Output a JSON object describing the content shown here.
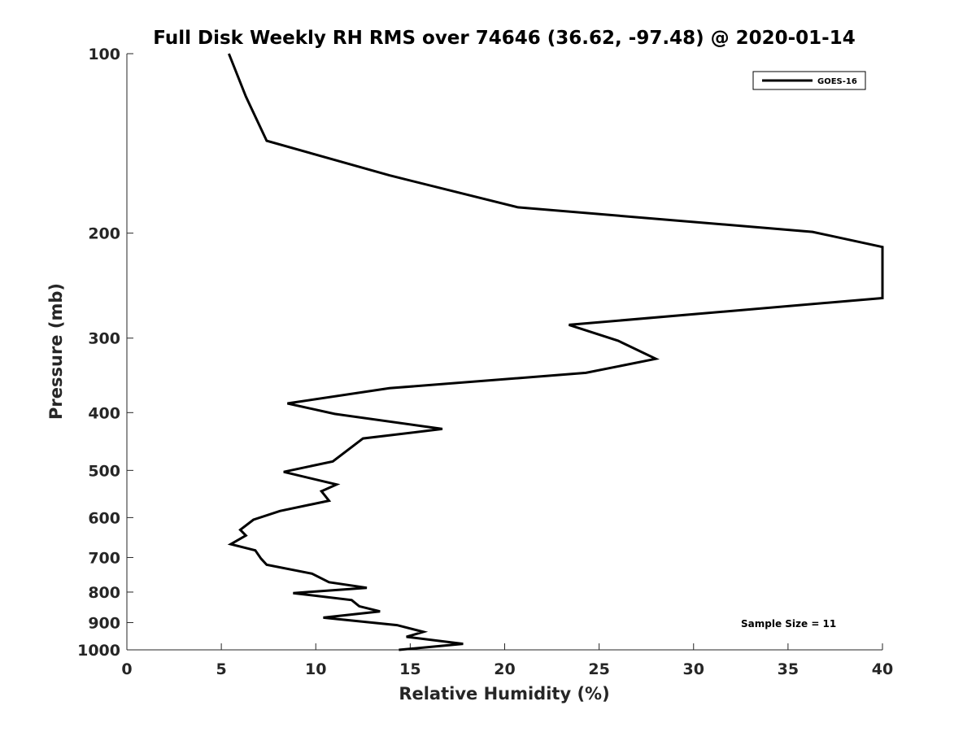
{
  "chart_data": {
    "type": "line",
    "title": "Full Disk Weekly RH RMS over 74646 (36.62, -97.48) @ 2020-01-14",
    "xlabel": "Relative Humidity (%)",
    "ylabel": "Pressure (mb)",
    "xlim": [
      0,
      40
    ],
    "ylim": [
      100,
      1000
    ],
    "yscale": "log",
    "y_reversed": true,
    "x_ticks": [
      0,
      5,
      10,
      15,
      20,
      25,
      30,
      35,
      40
    ],
    "y_ticks": [
      100,
      200,
      300,
      400,
      500,
      600,
      700,
      800,
      900,
      1000
    ],
    "legend_position": "top-right",
    "annotation": "Sample Size = 11",
    "series": [
      {
        "name": "GOES-16",
        "color": "#000000",
        "x": [
          5.4,
          6.3,
          7.4,
          13.9,
          20.7,
          36.3,
          40.0,
          40.0,
          40.0,
          23.4,
          26.0,
          28.0,
          24.3,
          13.9,
          8.5,
          11.0,
          16.7,
          12.5,
          10.9,
          8.3,
          11.1,
          10.3,
          10.7,
          8.1,
          6.7,
          6.0,
          6.3,
          5.5,
          6.8,
          7.1,
          7.4,
          9.8,
          10.7,
          12.7,
          8.8,
          11.9,
          12.3,
          13.4,
          10.4,
          14.3,
          15.7,
          14.8,
          17.8,
          14.4
        ],
        "y": [
          100,
          118,
          140,
          160,
          181,
          199,
          211,
          225,
          257,
          285,
          303,
          325,
          343,
          364,
          386,
          402,
          426,
          442,
          483,
          503,
          528,
          542,
          562,
          585,
          605,
          629,
          643,
          665,
          681,
          703,
          720,
          745,
          770,
          787,
          803,
          825,
          845,
          862,
          883,
          909,
          933,
          951,
          977,
          1000
        ]
      }
    ]
  }
}
